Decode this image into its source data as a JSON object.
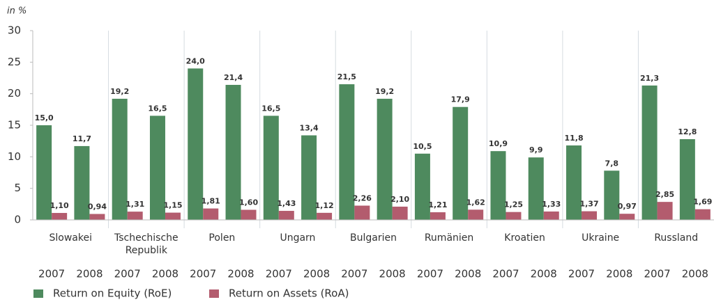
{
  "chart_data": {
    "type": "bar",
    "y_label": "in %",
    "groups": [
      "Slowakei",
      "Tschechische Republik",
      "Polen",
      "Ungarn",
      "Bulgarien",
      "Rumänien",
      "Kroatien",
      "Ukraine",
      "Russland"
    ],
    "categories": [
      "2007",
      "2008",
      "2007",
      "2008",
      "2007",
      "2008",
      "2007",
      "2008",
      "2007",
      "2008",
      "2007",
      "2008",
      "2007",
      "2008",
      "2007",
      "2008",
      "2007",
      "2008"
    ],
    "series": [
      {
        "name": "Return on Equity (RoE)",
        "color": "#4e8a5e",
        "values": [
          15.0,
          11.7,
          19.2,
          16.5,
          24.0,
          21.4,
          16.5,
          13.4,
          21.5,
          19.2,
          10.5,
          17.9,
          10.9,
          9.9,
          11.8,
          7.8,
          21.3,
          12.8
        ],
        "value_labels": [
          "15,0",
          "11,7",
          "19,2",
          "16,5",
          "24,0",
          "21,4",
          "16,5",
          "13,4",
          "21,5",
          "19,2",
          "10,5",
          "17,9",
          "10,9",
          "9,9",
          "11,8",
          "7,8",
          "21,3",
          "12,8"
        ]
      },
      {
        "name": "Return on Assets (RoA)",
        "color": "#b35c6e",
        "values": [
          1.1,
          0.94,
          1.31,
          1.15,
          1.81,
          1.6,
          1.43,
          1.12,
          2.26,
          2.1,
          1.21,
          1.62,
          1.25,
          1.33,
          1.37,
          0.97,
          2.85,
          1.69
        ],
        "value_labels": [
          "1,10",
          "0,94",
          "1,31",
          "1,15",
          "1,81",
          "1,60",
          "1,43",
          "1,12",
          "2,26",
          "2,10",
          "1,21",
          "1,62",
          "1,25",
          "1,33",
          "1,37",
          "0,97",
          "2,85",
          "1,69"
        ]
      }
    ],
    "ylim": [
      0,
      30
    ],
    "yticks": [
      0,
      5,
      10,
      15,
      20,
      25,
      30
    ],
    "legend": "bottom-left"
  }
}
